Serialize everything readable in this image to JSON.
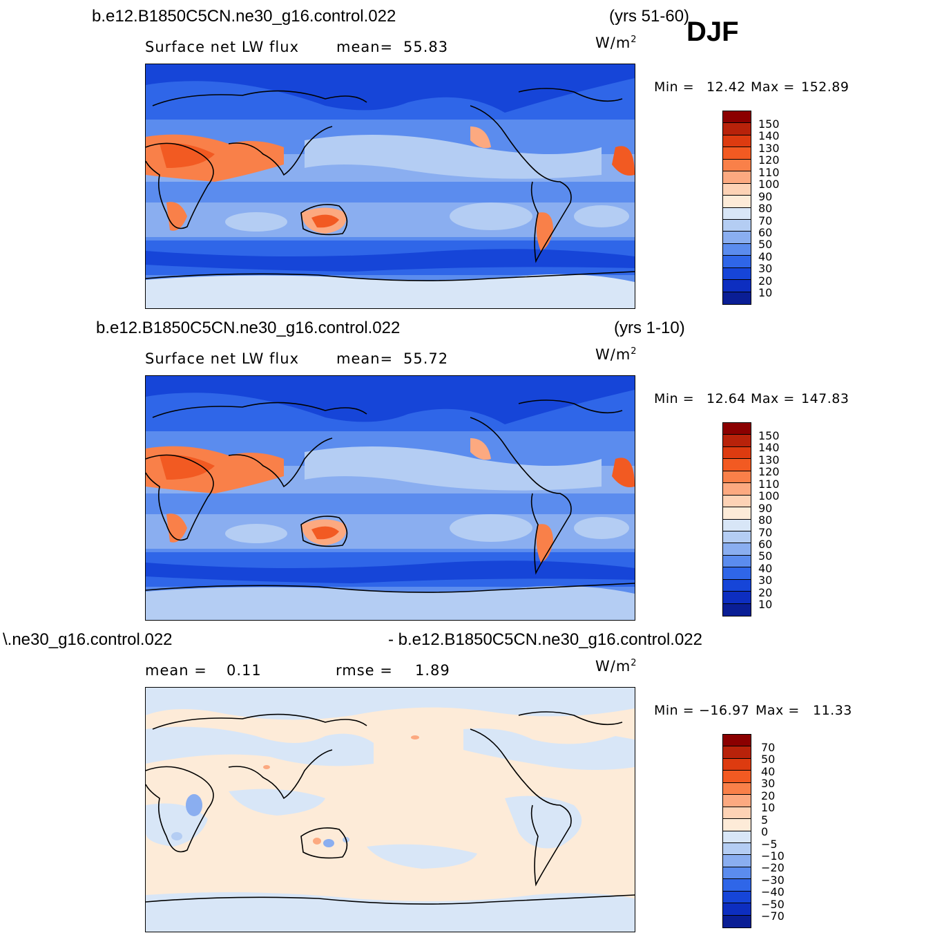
{
  "season": "DJF",
  "panels": [
    {
      "case_left": "b.e12.B1850C5CN.ne30_g16.control.022",
      "case_right": "(yrs 51-60)",
      "subtitle_left": "Surface  net  LW  flux",
      "stat_label": "mean=",
      "stat_value": "55.83",
      "units": "W/m",
      "units_exp": "2",
      "min_label": "Min  =",
      "min_value": "12.42",
      "max_label": "Max  =",
      "max_value": "152.89",
      "colorbar": {
        "colors": [
          "#8b0000",
          "#b8220a",
          "#dd3b10",
          "#f25a22",
          "#f98049",
          "#fca980",
          "#fdd2b5",
          "#fdebd8",
          "#d8e6f7",
          "#b4cdf3",
          "#8aaef0",
          "#5b8cee",
          "#2f66e8",
          "#1645d8",
          "#0d2ec0",
          "#0a1e95",
          "#050a70"
        ],
        "labels": [
          "150",
          "140",
          "130",
          "120",
          "110",
          "100",
          "90",
          "80",
          "70",
          "60",
          "50",
          "40",
          "30",
          "20",
          "10"
        ]
      }
    },
    {
      "case_left": "b.e12.B1850C5CN.ne30_g16.control.022",
      "case_right": "(yrs 1-10)",
      "subtitle_left": "Surface  net  LW  flux",
      "stat_label": "mean=",
      "stat_value": "55.72",
      "units": "W/m",
      "units_exp": "2",
      "min_label": "Min  =",
      "min_value": "12.64",
      "max_label": "Max  =",
      "max_value": "147.83",
      "colorbar": {
        "colors": [
          "#8b0000",
          "#b8220a",
          "#dd3b10",
          "#f25a22",
          "#f98049",
          "#fca980",
          "#fdd2b5",
          "#fdebd8",
          "#d8e6f7",
          "#b4cdf3",
          "#8aaef0",
          "#5b8cee",
          "#2f66e8",
          "#1645d8",
          "#0d2ec0",
          "#0a1e95",
          "#050a70"
        ],
        "labels": [
          "150",
          "140",
          "130",
          "120",
          "110",
          "100",
          "90",
          "80",
          "70",
          "60",
          "50",
          "40",
          "30",
          "20",
          "10"
        ]
      }
    },
    {
      "case_left": "\\.ne30_g16.control.022",
      "case_right": "- b.e12.B1850C5CN.ne30_g16.control.022",
      "stat1_label": "mean  =",
      "stat1_value": "0.11",
      "stat2_label": "rmse  =",
      "stat2_value": "1.89",
      "units": "W/m",
      "units_exp": "2",
      "min_label": "Min  =",
      "min_value": "−16.97",
      "max_label": "Max  =",
      "max_value": "11.33",
      "colorbar": {
        "colors": [
          "#8b0000",
          "#b8220a",
          "#dd3b10",
          "#f25a22",
          "#f98049",
          "#fca980",
          "#fdd2b5",
          "#fdebd8",
          "#d8e6f7",
          "#b4cdf3",
          "#8aaef0",
          "#5b8cee",
          "#2f66e8",
          "#1645d8",
          "#0d2ec0",
          "#0a1e95",
          "#050a70"
        ],
        "labels": [
          "70",
          "50",
          "40",
          "30",
          "20",
          "10",
          "5",
          "0",
          "−5",
          "−10",
          "−20",
          "−30",
          "−40",
          "−50",
          "−70"
        ]
      }
    }
  ]
}
